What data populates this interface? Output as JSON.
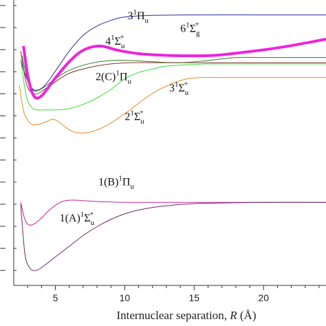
{
  "chart_data": {
    "type": "line",
    "xlabel": "Internuclear separation,",
    "xlabel_var": "R",
    "xlabel_unit": "(Å)",
    "xlim": [
      2.0,
      24.5
    ],
    "x_ticks": [
      5,
      10,
      15,
      20
    ],
    "grid": false,
    "series": [
      {
        "name": "3¹Πu",
        "color": "#2a2aa0",
        "width": 1,
        "x": [
          2.5,
          2.8,
          3.2,
          3.6,
          4.2,
          5.0,
          6.0,
          7.0,
          8.0,
          9.0,
          10.0,
          12.0,
          15.0,
          20.0,
          24.5
        ],
        "y": [
          -1.0,
          -1.33,
          -1.62,
          -1.72,
          -1.62,
          -1.27,
          -0.8,
          -0.43,
          -0.21,
          -0.08,
          0.0,
          0.04,
          0.05,
          0.05,
          0.05
        ]
      },
      {
        "name": "6¹Σg+",
        "color": "#ee22dd",
        "width": 4,
        "x": [
          2.7,
          3.0,
          3.3,
          3.6,
          4.0,
          4.5,
          5.0,
          6.0,
          7.0,
          8.2,
          9.5,
          11.0,
          13.0,
          15.0,
          16.5,
          18.0,
          20.0,
          22.0,
          24.5
        ],
        "y": [
          -0.68,
          -1.35,
          -1.75,
          -1.9,
          -1.85,
          -1.65,
          -1.43,
          -1.05,
          -0.78,
          -0.68,
          -0.78,
          -0.86,
          -0.9,
          -0.91,
          -0.9,
          -0.85,
          -0.77,
          -0.67,
          -0.52
        ]
      },
      {
        "name": "4¹Σu+",
        "color": "#2e7d2e",
        "width": 1,
        "x": [
          2.6,
          3.0,
          3.4,
          3.8,
          4.3,
          5.0,
          6.0,
          7.5,
          9.0,
          10.5,
          12.0,
          14.0,
          16.0,
          18.0,
          20.0,
          24.5
        ],
        "y": [
          -0.9,
          -1.5,
          -1.72,
          -1.72,
          -1.62,
          -1.45,
          -1.25,
          -1.09,
          -1.02,
          -1.02,
          -1.05,
          -1.07,
          -1.02,
          -0.95,
          -0.95,
          -0.95
        ]
      },
      {
        "name": "2(C)¹Πu",
        "color": "#7a3a28",
        "width": 1,
        "x": [
          2.5,
          2.9,
          3.3,
          3.7,
          4.2,
          5.0,
          6.0,
          7.5,
          9.0,
          10.5,
          12.0,
          14.0,
          16.0,
          18.0,
          20.0,
          24.5
        ],
        "y": [
          -0.8,
          -1.55,
          -1.78,
          -1.8,
          -1.7,
          -1.52,
          -1.32,
          -1.18,
          -1.1,
          -1.07,
          -1.07,
          -1.07,
          -1.07,
          -1.07,
          -1.07,
          -1.07
        ]
      },
      {
        "name": "3¹Σu+",
        "color": "#33dd33",
        "width": 1,
        "x": [
          2.5,
          2.9,
          3.3,
          3.7,
          4.2,
          5.0,
          6.0,
          7.0,
          8.0,
          9.0,
          10.0,
          11.0,
          12.0,
          13.0,
          14.5,
          16.0,
          18.0,
          20.0,
          24.5
        ],
        "y": [
          -1.0,
          -1.85,
          -2.12,
          -2.18,
          -2.18,
          -2.18,
          -2.15,
          -2.05,
          -1.9,
          -1.7,
          -1.45,
          -1.3,
          -1.22,
          -1.15,
          -1.12,
          -1.1,
          -1.1,
          -1.1,
          -1.1
        ]
      },
      {
        "name": "2¹Σu+",
        "color": "#e08a20",
        "width": 1,
        "x": [
          2.4,
          2.7,
          3.0,
          3.3,
          3.6,
          4.0,
          4.4,
          4.8,
          5.2,
          5.7,
          6.2,
          6.8,
          7.5,
          8.5,
          9.5,
          10.5,
          11.5,
          12.5,
          13.5,
          14.5,
          15.5,
          17.0,
          19.0,
          24.5
        ],
        "y": [
          -1.6,
          -2.2,
          -2.42,
          -2.52,
          -2.53,
          -2.5,
          -2.45,
          -2.4,
          -2.45,
          -2.58,
          -2.68,
          -2.72,
          -2.7,
          -2.58,
          -2.38,
          -2.15,
          -1.9,
          -1.7,
          -1.55,
          -1.45,
          -1.42,
          -1.42,
          -1.42,
          -1.42
        ]
      },
      {
        "name": "1(B)¹Πu",
        "color": "#cc2299",
        "width": 1,
        "x": [
          2.5,
          2.8,
          3.1,
          3.5,
          4.0,
          4.5,
          5.0,
          5.5,
          6.0,
          6.5,
          7.0,
          8.0,
          9.0,
          10.0,
          12.0,
          15.0,
          20.0,
          24.5
        ],
        "y": [
          -4.35,
          -4.75,
          -4.88,
          -4.85,
          -4.72,
          -4.55,
          -4.42,
          -4.33,
          -4.3,
          -4.3,
          -4.31,
          -4.33,
          -4.34,
          -4.35,
          -4.35,
          -4.35,
          -4.35,
          -4.35
        ]
      },
      {
        "name": "1(A)¹Σu+",
        "color": "#6a2a6a",
        "width": 1,
        "x": [
          2.5,
          2.8,
          3.1,
          3.4,
          3.7,
          4.0,
          4.5,
          5.0,
          6.0,
          7.0,
          8.0,
          9.0,
          10.0,
          11.0,
          12.0,
          13.0,
          14.0,
          15.0,
          16.0,
          18.0,
          20.0,
          24.5
        ],
        "y": [
          -4.4,
          -5.55,
          -5.86,
          -5.95,
          -5.94,
          -5.88,
          -5.76,
          -5.63,
          -5.38,
          -5.13,
          -4.92,
          -4.75,
          -4.62,
          -4.53,
          -4.47,
          -4.43,
          -4.4,
          -4.38,
          -4.37,
          -4.36,
          -4.35,
          -4.35
        ]
      }
    ],
    "annotations": [
      {
        "base": "3",
        "sup1": "1",
        "main": "Π",
        "sub": "u",
        "sup": "",
        "x": 10.2,
        "y": -0.05,
        "color": "#111"
      },
      {
        "base": "6",
        "sup1": "1",
        "main": "Σ",
        "sub": "g",
        "sup": "+",
        "x": 14.0,
        "y": -0.35,
        "color": "#111"
      },
      {
        "base": "4",
        "sup1": "1",
        "main": "Σ",
        "sub": "u",
        "sup": "+",
        "x": 8.6,
        "y": -0.65,
        "color": "#111"
      },
      {
        "base": "2(C)",
        "sup1": "1",
        "main": "Π",
        "sub": "u",
        "sup": "",
        "x": 7.9,
        "y": -1.48,
        "color": "#111"
      },
      {
        "base": "3",
        "sup1": "1",
        "main": "Σ",
        "sub": "u",
        "sup": "+",
        "x": 13.2,
        "y": -1.75,
        "color": "#111"
      },
      {
        "base": "2",
        "sup1": "1",
        "main": "Σ",
        "sub": "u",
        "sup": "+",
        "x": 10.0,
        "y": -2.42,
        "color": "#111"
      },
      {
        "base": "1(B)",
        "sup1": "1",
        "main": "Π",
        "sub": "u",
        "sup": "",
        "x": 8.1,
        "y": -3.95,
        "color": "#111"
      },
      {
        "base": "1(A)",
        "sup1": "1",
        "main": "Σ",
        "sub": "u",
        "sup": "+",
        "x": 5.3,
        "y": -4.8,
        "color": "#111"
      }
    ]
  }
}
